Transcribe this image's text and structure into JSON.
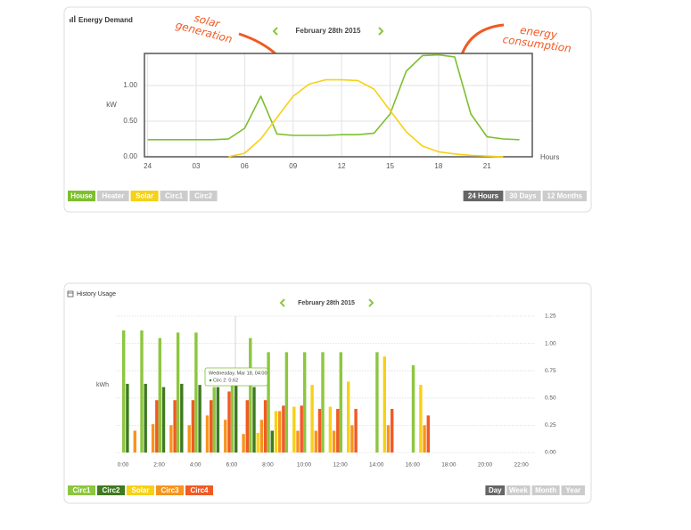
{
  "chart_data": [
    {
      "type": "line",
      "title": "Energy Demand",
      "date": "February 28th 2015",
      "ylabel": "kW",
      "xlabel": "Hours",
      "annotations": [
        [
          "solar",
          "generation"
        ],
        [
          "energy",
          "consumption"
        ]
      ],
      "x": [
        0,
        1,
        2,
        3,
        4,
        5,
        6,
        7,
        8,
        9,
        10,
        11,
        12,
        13,
        14,
        15,
        16,
        17,
        18,
        19,
        20,
        21,
        22,
        23
      ],
      "series": [
        {
          "name": "House",
          "color": "#7dbf2e",
          "values": [
            0.24,
            0.24,
            0.24,
            0.24,
            0.24,
            0.25,
            0.4,
            0.85,
            0.32,
            0.3,
            0.3,
            0.3,
            0.31,
            0.31,
            0.33,
            0.6,
            1.2,
            1.42,
            1.43,
            1.4,
            0.6,
            0.28,
            0.25,
            0.24
          ]
        },
        {
          "name": "Solar",
          "color": "#f7d117",
          "values": [
            null,
            null,
            null,
            null,
            null,
            0.0,
            0.05,
            0.25,
            0.55,
            0.85,
            1.02,
            1.08,
            1.08,
            1.07,
            0.95,
            0.65,
            0.35,
            0.15,
            0.07,
            0.04,
            0.02,
            0.01,
            0.0,
            null
          ]
        }
      ],
      "xlim": [
        -0.2,
        23.8
      ],
      "xticks": [
        {
          "value": 0,
          "label": "24"
        },
        {
          "value": 3,
          "label": "03"
        },
        {
          "value": 6,
          "label": "06"
        },
        {
          "value": 9,
          "label": "09"
        },
        12,
        15,
        18,
        21
      ],
      "ylim": [
        0,
        1.45
      ],
      "yticks": [
        {
          "value": 0,
          "label": "0.00"
        },
        {
          "value": 0.5,
          "label": "0.50"
        },
        {
          "value": 1,
          "label": "1.00"
        }
      ],
      "grid": true,
      "legend": [
        "House",
        "Heater",
        "Solar",
        "Circ1",
        "Circ2"
      ],
      "ranges": [
        "24 Hours",
        "30 Days",
        "12 Months"
      ],
      "range_selected": 0
    },
    {
      "type": "bar",
      "title": "History Usage",
      "date": "February 28th 2015",
      "ylabel": "kWh",
      "categories": [
        "0:00",
        null,
        "2:00",
        null,
        "4:00",
        null,
        "6:00",
        null,
        "8:00",
        null,
        "10:00",
        null,
        "12:00",
        null,
        "14:00",
        null,
        "16:00",
        null,
        "18:00",
        null,
        "20:00",
        null,
        "22:00",
        null
      ],
      "series": [
        {
          "name": "Circ1",
          "color": "#8dc63f",
          "values": [
            1.12,
            1.12,
            1.05,
            1.1,
            1.1,
            0.6,
            0.62,
            1.05,
            0.92,
            0.92,
            0.92,
            0.92,
            0.92,
            null,
            0.92,
            null,
            0.8,
            null,
            null,
            null,
            null,
            null,
            null,
            null
          ]
        },
        {
          "name": "Circ2",
          "color": "#3e7a1f",
          "values": [
            0.63,
            0.63,
            0.6,
            0.63,
            0.62,
            0.6,
            0.62,
            0.6,
            0.2,
            0,
            0,
            0,
            0,
            null,
            0,
            null,
            0,
            null,
            null,
            null,
            null,
            null,
            null,
            null
          ]
        },
        {
          "name": "Solar",
          "color": "#f7d117",
          "values": [
            0,
            0,
            0,
            0,
            0,
            0,
            0,
            0.18,
            0.38,
            0.42,
            0.62,
            0.42,
            0.65,
            null,
            0.88,
            null,
            0.62,
            null,
            null,
            null,
            null,
            null,
            null,
            null
          ]
        },
        {
          "name": "Circ3",
          "color": "#f7941d",
          "values": [
            0.2,
            0.26,
            0.25,
            0.25,
            0.34,
            0.3,
            0.17,
            0.3,
            0.38,
            0.2,
            0.2,
            0.2,
            0.25,
            null,
            0.25,
            null,
            0.25,
            null,
            null,
            null,
            null,
            null,
            null,
            null
          ]
        },
        {
          "name": "Circ4",
          "color": "#f15a24",
          "values": [
            0,
            0.48,
            0.48,
            0.48,
            0.48,
            0.56,
            0.48,
            0.48,
            0.43,
            0.43,
            0.4,
            0.4,
            0.4,
            null,
            0.4,
            null,
            0.34,
            null,
            null,
            null,
            null,
            null,
            null,
            null
          ]
        }
      ],
      "ylim": [
        0,
        1.25
      ],
      "yticks": [
        {
          "value": 0,
          "label": "0.00"
        },
        {
          "value": 0.25,
          "label": "0.25"
        },
        {
          "value": 0.5,
          "label": "0.50"
        },
        {
          "value": 0.75,
          "label": "0.75"
        },
        {
          "value": 1,
          "label": "1.00"
        },
        {
          "value": 1.25,
          "label": "1.25"
        }
      ],
      "grid": true,
      "tooltip": {
        "title": "Wednesday, Mar 18, 04:00",
        "text": "Circ 2: 0.62"
      },
      "ranges": [
        "Day",
        "Week",
        "Month",
        "Year"
      ],
      "range_selected": 0
    }
  ]
}
